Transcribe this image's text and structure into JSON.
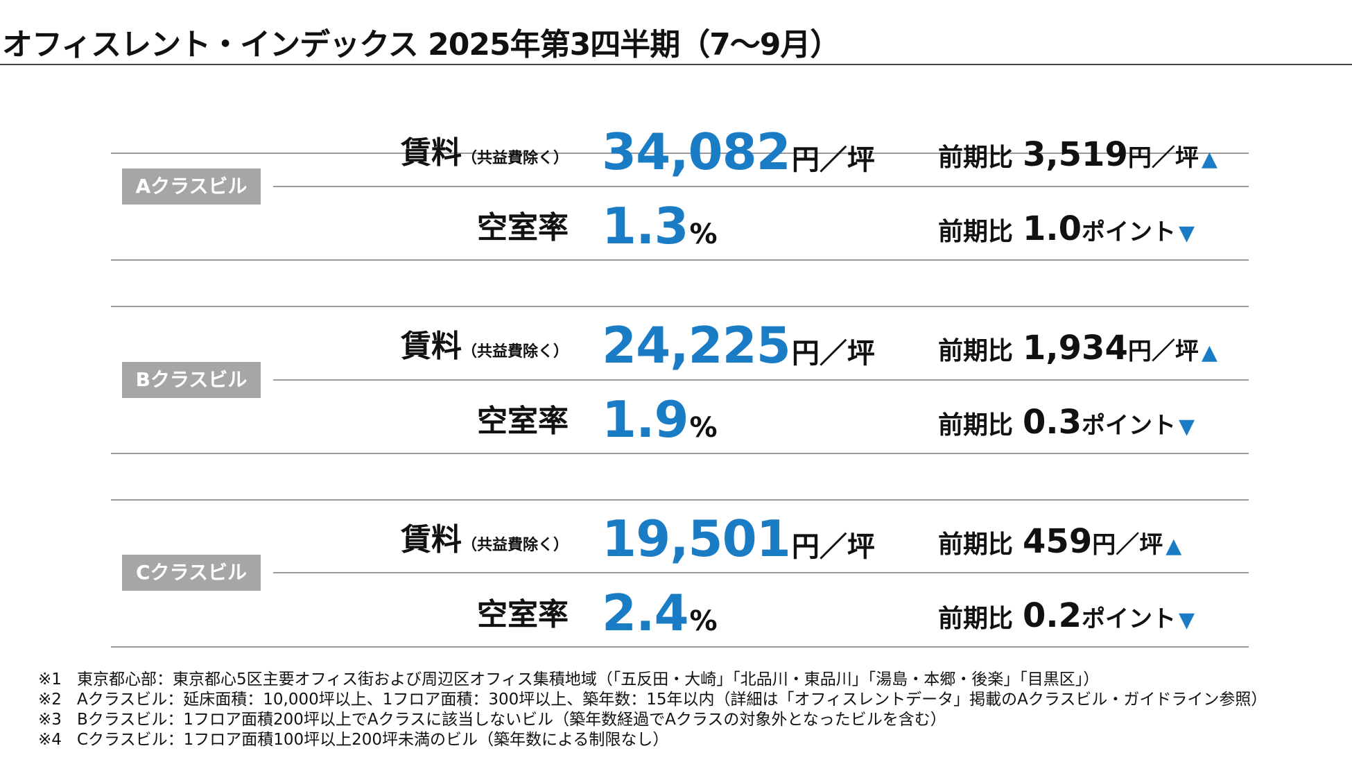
{
  "title": "オフィスレント・インデックス 2025年第3四半期（7〜9月）",
  "colors": {
    "accent": "#1a7cc5",
    "badge": "#a6a6a6"
  },
  "sections": [
    {
      "badge": "Aクラスビル",
      "rent_label": "賃料",
      "rent_sub": "（共益費除く）",
      "rent_value": "34,082",
      "rent_unit": "円／坪",
      "rent_change_prefix": "前期比",
      "rent_change_value": "3,519",
      "rent_change_unit": "円／坪",
      "rent_change_dir": "▲",
      "vacancy_label": "空室率",
      "vacancy_value": "1.3",
      "vacancy_unit": "%",
      "vacancy_change_prefix": "前期比",
      "vacancy_change_value": "1.0",
      "vacancy_change_unit": "ポイント",
      "vacancy_change_dir": "▼"
    },
    {
      "badge": "Bクラスビル",
      "rent_label": "賃料",
      "rent_sub": "（共益費除く）",
      "rent_value": "24,225",
      "rent_unit": "円／坪",
      "rent_change_prefix": "前期比",
      "rent_change_value": "1,934",
      "rent_change_unit": "円／坪",
      "rent_change_dir": "▲",
      "vacancy_label": "空室率",
      "vacancy_value": "1.9",
      "vacancy_unit": "%",
      "vacancy_change_prefix": "前期比",
      "vacancy_change_value": "0.3",
      "vacancy_change_unit": "ポイント",
      "vacancy_change_dir": "▼"
    },
    {
      "badge": "Cクラスビル",
      "rent_label": "賃料",
      "rent_sub": "（共益費除く）",
      "rent_value": "19,501",
      "rent_unit": "円／坪",
      "rent_change_prefix": "前期比",
      "rent_change_value": "459",
      "rent_change_unit": "円／坪",
      "rent_change_dir": "▲",
      "vacancy_label": "空室率",
      "vacancy_value": "2.4",
      "vacancy_unit": "%",
      "vacancy_change_prefix": "前期比",
      "vacancy_change_value": "0.2",
      "vacancy_change_unit": "ポイント",
      "vacancy_change_dir": "▼"
    }
  ],
  "notes": [
    {
      "mark": "※1",
      "text": "東京都心部：東京都心5区主要オフィス街および周辺区オフィス集積地域（「五反田・大崎」「北品川・東品川」「湯島・本郷・後楽」「目黒区」）"
    },
    {
      "mark": "※2",
      "text": "Aクラスビル：延床面積：10,000坪以上、1フロア面積：300坪以上、築年数：15年以内（詳細は「オフィスレントデータ」掲載のAクラスビル・ガイドライン参照）"
    },
    {
      "mark": "※3",
      "text": "Bクラスビル：1フロア面積200坪以上でAクラスに該当しないビル（築年数経過でAクラスの対象外となったビルを含む）"
    },
    {
      "mark": "※4",
      "text": "Cクラスビル：1フロア面積100坪以上200坪未満のビル（築年数による制限なし）"
    }
  ]
}
